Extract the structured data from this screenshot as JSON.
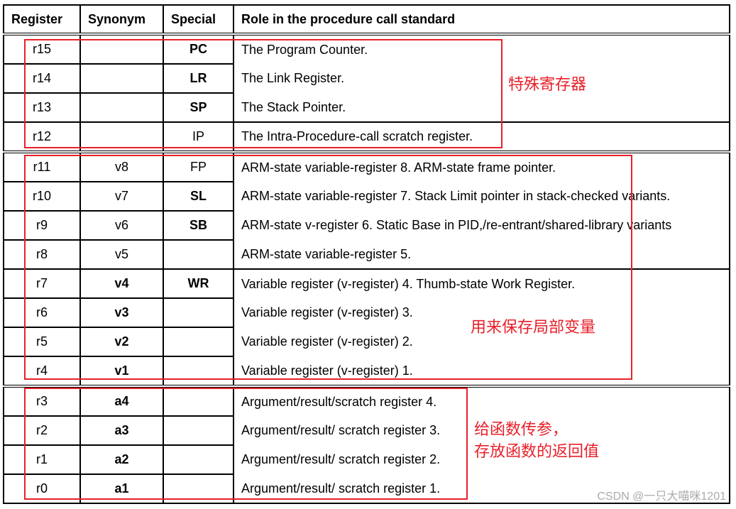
{
  "headers": [
    "Register",
    "Synonym",
    "Special",
    "Role in the procedure call standard"
  ],
  "rows": [
    {
      "reg": "r15",
      "syn": "",
      "syn_bold": false,
      "special": "PC",
      "special_bold": true,
      "role": "The Program Counter.",
      "group_start": true
    },
    {
      "reg": "r14",
      "syn": "",
      "syn_bold": false,
      "special": "LR",
      "special_bold": true,
      "role": "The Link Register."
    },
    {
      "reg": "r13",
      "syn": "",
      "syn_bold": false,
      "special": "SP",
      "special_bold": true,
      "role": "The Stack Pointer."
    },
    {
      "reg": "r12",
      "syn": "",
      "syn_bold": false,
      "special": "IP",
      "special_bold": false,
      "role": "The Intra-Procedure-call scratch register.",
      "role_border": true
    },
    {
      "reg": "r11",
      "syn": "v8",
      "syn_bold": false,
      "special": "FP",
      "special_bold": false,
      "role": "ARM-state variable-register 8. ARM-state frame pointer.",
      "group_start": true
    },
    {
      "reg": "r10",
      "syn": "v7",
      "syn_bold": false,
      "special": "SL",
      "special_bold": true,
      "role": "ARM-state variable-register 7. Stack Limit pointer in stack-checked variants."
    },
    {
      "reg": "r9",
      "syn": "v6",
      "syn_bold": false,
      "special": "SB",
      "special_bold": true,
      "role": "ARM-state v-register 6. Static Base in PID,/re-entrant/shared-library variants"
    },
    {
      "reg": "r8",
      "syn": "v5",
      "syn_bold": false,
      "special": "",
      "special_bold": false,
      "role": "ARM-state variable-register 5."
    },
    {
      "reg": "r7",
      "syn": "v4",
      "syn_bold": true,
      "special": "WR",
      "special_bold": true,
      "role": "Variable register (v-register) 4. Thumb-state Work Register.",
      "role_border": true
    },
    {
      "reg": "r6",
      "syn": "v3",
      "syn_bold": true,
      "special": "",
      "special_bold": false,
      "role": "Variable register (v-register) 3."
    },
    {
      "reg": "r5",
      "syn": "v2",
      "syn_bold": true,
      "special": "",
      "special_bold": false,
      "role": "Variable register (v-register) 2."
    },
    {
      "reg": "r4",
      "syn": "v1",
      "syn_bold": true,
      "special": "",
      "special_bold": false,
      "role": "Variable register (v-register) 1."
    },
    {
      "reg": "r3",
      "syn": "a4",
      "syn_bold": true,
      "special": "",
      "special_bold": false,
      "role": "Argument/result/scratch register 4.",
      "group_start": true
    },
    {
      "reg": "r2",
      "syn": "a3",
      "syn_bold": true,
      "special": "",
      "special_bold": false,
      "role": "Argument/result/ scratch register 3."
    },
    {
      "reg": "r1",
      "syn": "a2",
      "syn_bold": true,
      "special": "",
      "special_bold": false,
      "role": "Argument/result/ scratch register 2."
    },
    {
      "reg": "r0",
      "syn": "a1",
      "syn_bold": true,
      "special": "",
      "special_bold": false,
      "role": "Argument/result/ scratch register 1."
    }
  ],
  "annotations": {
    "special": "特殊寄存器",
    "local": "用来保存局部变量",
    "args_line1": "给函数传参，",
    "args_line2": "存放函数的返回值"
  },
  "highlight_color": "#e8202a",
  "watermark": "CSDN @一只大喵咪1201"
}
